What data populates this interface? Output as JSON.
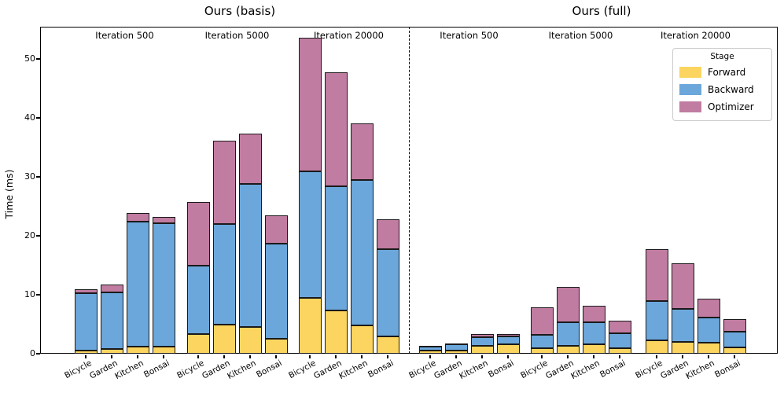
{
  "chart_data": {
    "type": "bar",
    "stacked": true,
    "ylabel": "Time (ms)",
    "ylim": [
      0,
      55.45
    ],
    "yticks": [
      0,
      10,
      20,
      30,
      40,
      50
    ],
    "categories": [
      "Bicycle",
      "Garden",
      "Kitchen",
      "Bonsai"
    ],
    "legend": {
      "title": "Stage",
      "entries": [
        {
          "label": "Forward",
          "color": "#FBD55F"
        },
        {
          "label": "Backward",
          "color": "#6CA7DB"
        },
        {
          "label": "Optimizer",
          "color": "#C17CA2"
        }
      ]
    },
    "colors": {
      "edge": "#1a1a1a"
    },
    "panels": [
      {
        "title": "Ours (basis)",
        "groups": [
          {
            "label": "Iteration 500",
            "bars": [
              {
                "category": "Bicycle",
                "forward": 0.6,
                "backward": 9.7,
                "optimizer": 0.6
              },
              {
                "category": "Garden",
                "forward": 0.8,
                "backward": 9.6,
                "optimizer": 1.3
              },
              {
                "category": "Kitchen",
                "forward": 1.2,
                "backward": 21.2,
                "optimizer": 1.5
              },
              {
                "category": "Bonsai",
                "forward": 1.2,
                "backward": 21.0,
                "optimizer": 1.0
              }
            ]
          },
          {
            "label": "Iteration 5000",
            "bars": [
              {
                "category": "Bicycle",
                "forward": 3.3,
                "backward": 11.6,
                "optimizer": 10.9
              },
              {
                "category": "Garden",
                "forward": 5.0,
                "backward": 17.0,
                "optimizer": 14.2
              },
              {
                "category": "Kitchen",
                "forward": 4.6,
                "backward": 24.2,
                "optimizer": 8.5
              },
              {
                "category": "Bonsai",
                "forward": 2.6,
                "backward": 16.1,
                "optimizer": 4.8
              }
            ]
          },
          {
            "label": "Iteration 20000",
            "bars": [
              {
                "category": "Bicycle",
                "forward": 9.5,
                "backward": 21.5,
                "optimizer": 22.6
              },
              {
                "category": "Garden",
                "forward": 7.4,
                "backward": 21.0,
                "optimizer": 19.4
              },
              {
                "category": "Kitchen",
                "forward": 4.8,
                "backward": 24.7,
                "optimizer": 9.6
              },
              {
                "category": "Bonsai",
                "forward": 3.0,
                "backward": 14.8,
                "optimizer": 5.0
              }
            ]
          }
        ]
      },
      {
        "title": "Ours (full)",
        "groups": [
          {
            "label": "Iteration 500",
            "bars": [
              {
                "category": "Bicycle",
                "forward": 0.55,
                "backward": 0.6,
                "optimizer": 0.15
              },
              {
                "category": "Garden",
                "forward": 0.6,
                "backward": 0.95,
                "optimizer": 0.25
              },
              {
                "category": "Kitchen",
                "forward": 1.3,
                "backward": 1.5,
                "optimizer": 0.5
              },
              {
                "category": "Bonsai",
                "forward": 1.55,
                "backward": 1.35,
                "optimizer": 0.5
              }
            ]
          },
          {
            "label": "Iteration 5000",
            "bars": [
              {
                "category": "Bicycle",
                "forward": 1.0,
                "backward": 2.2,
                "optimizer": 4.7
              },
              {
                "category": "Garden",
                "forward": 1.3,
                "backward": 4.1,
                "optimizer": 5.9
              },
              {
                "category": "Kitchen",
                "forward": 1.6,
                "backward": 3.8,
                "optimizer": 2.7
              },
              {
                "category": "Bonsai",
                "forward": 0.9,
                "backward": 2.6,
                "optimizer": 2.1
              }
            ]
          },
          {
            "label": "Iteration 20000",
            "bars": [
              {
                "category": "Bicycle",
                "forward": 2.3,
                "backward": 6.7,
                "optimizer": 8.7
              },
              {
                "category": "Garden",
                "forward": 2.0,
                "backward": 5.6,
                "optimizer": 7.7
              },
              {
                "category": "Kitchen",
                "forward": 1.9,
                "backward": 4.3,
                "optimizer": 3.2
              },
              {
                "category": "Bonsai",
                "forward": 1.1,
                "backward": 2.7,
                "optimizer": 2.1
              }
            ]
          }
        ]
      }
    ]
  }
}
